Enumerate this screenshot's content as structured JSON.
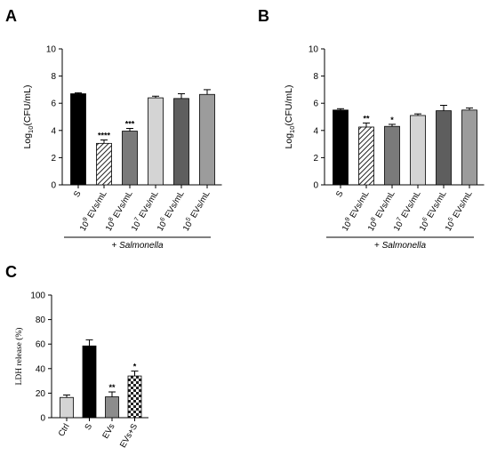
{
  "chart_data": [
    {
      "panel": "A",
      "type": "bar",
      "ylabel": "Log10(CFU/mL)",
      "ylim": [
        0,
        10
      ],
      "yticks": [
        0,
        2,
        4,
        6,
        8,
        10
      ],
      "categories": [
        {
          "label": "S"
        },
        {
          "base": "10",
          "exp": "9",
          "unit": " EVs/mL"
        },
        {
          "base": "10",
          "exp": "8",
          "unit": " EVs/mL"
        },
        {
          "base": "10",
          "exp": "7",
          "unit": " EVs/mL"
        },
        {
          "base": "10",
          "exp": "6",
          "unit": " EVs/mL"
        },
        {
          "base": "10",
          "exp": "5",
          "unit": " EVs/mL"
        }
      ],
      "values": [
        6.7,
        3.05,
        3.95,
        6.4,
        6.35,
        6.65
      ],
      "errors": [
        0.07,
        0.25,
        0.2,
        0.12,
        0.35,
        0.35
      ],
      "significance": [
        "",
        "****",
        "***",
        "",
        "",
        ""
      ],
      "fills": [
        "#000000",
        "hatch",
        "#7a7a7a",
        "#d4d4d4",
        "#5e5e5e",
        "#9c9c9c"
      ],
      "condition": "+ Salmonella"
    },
    {
      "panel": "B",
      "type": "bar",
      "ylabel": "Log10(CFU/mL)",
      "ylim": [
        0,
        10
      ],
      "yticks": [
        0,
        2,
        4,
        6,
        8,
        10
      ],
      "categories": [
        {
          "label": "S"
        },
        {
          "base": "10",
          "exp": "9",
          "unit": " EVs/mL"
        },
        {
          "base": "10",
          "exp": "8",
          "unit": " EVs/mL"
        },
        {
          "base": "10",
          "exp": "7",
          "unit": " EVs/mL"
        },
        {
          "base": "10",
          "exp": "6",
          "unit": " EVs/mL"
        },
        {
          "base": "10",
          "exp": "5",
          "unit": " EVs/mL"
        }
      ],
      "values": [
        5.5,
        4.25,
        4.3,
        5.1,
        5.45,
        5.5
      ],
      "errors": [
        0.1,
        0.3,
        0.15,
        0.12,
        0.4,
        0.15
      ],
      "significance": [
        "",
        "**",
        "*",
        "",
        "",
        ""
      ],
      "fills": [
        "#000000",
        "hatch",
        "#7a7a7a",
        "#d4d4d4",
        "#5e5e5e",
        "#9c9c9c"
      ],
      "condition": "+ Salmonella"
    },
    {
      "panel": "C",
      "type": "bar",
      "ylabel": "LDH release (%)",
      "ylim": [
        0,
        100
      ],
      "yticks": [
        0,
        20,
        40,
        60,
        80,
        100
      ],
      "categories": [
        {
          "label": "Ctrl"
        },
        {
          "label": "S"
        },
        {
          "label": "EVs"
        },
        {
          "label": "EVs+S"
        }
      ],
      "values": [
        16.5,
        58.5,
        17,
        34
      ],
      "errors": [
        2,
        5,
        4,
        4
      ],
      "significance": [
        "",
        "",
        "**",
        "*"
      ],
      "fills": [
        "#d4d4d4",
        "#000000",
        "#8c8c8c",
        "checker"
      ],
      "condition": ""
    }
  ]
}
